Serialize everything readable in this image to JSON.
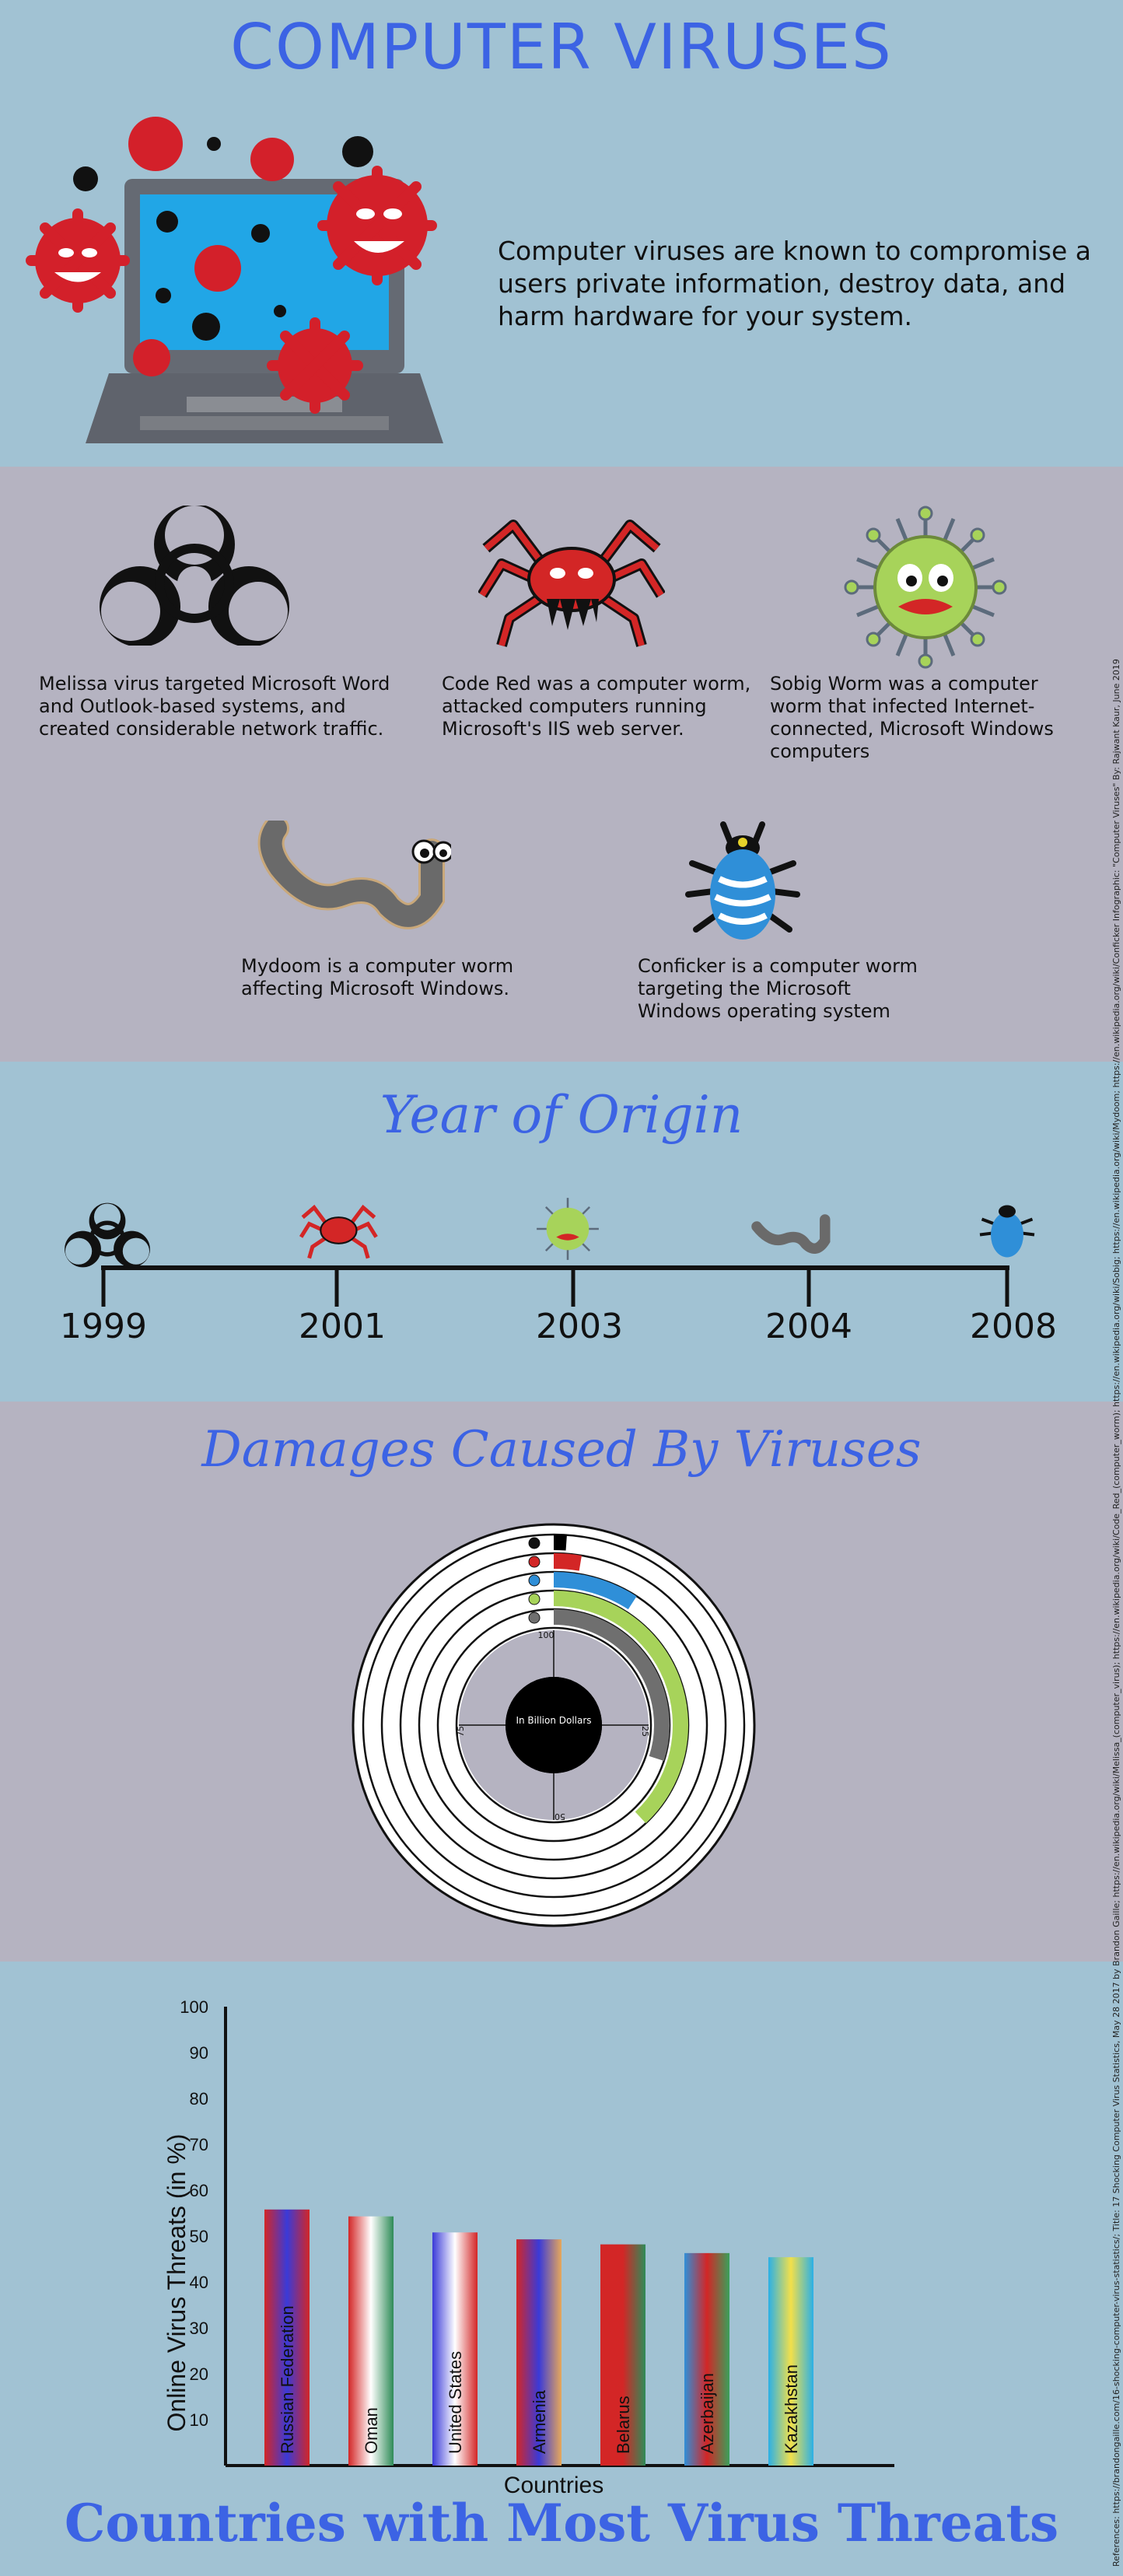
{
  "header": {
    "title": "COMPUTER VIRUSES",
    "intro": "Computer viruses are known to compromise a users private information, destroy data, and harm hardware for your system."
  },
  "viruses": [
    {
      "icon": "biohazard-icon",
      "caption": "Melissa virus  targeted Microsoft Word and Outlook-based systems, and created considerable network traffic."
    },
    {
      "icon": "spider-icon",
      "caption": "Code Red was a computer worm, attacked computers running Microsoft's IIS web server."
    },
    {
      "icon": "germ-icon",
      "caption": "Sobig Worm was a computer worm  that infected Internet-connected, Microsoft Windows computers"
    },
    {
      "icon": "worm-icon",
      "caption": "Mydoom is a computer worm affecting  Microsoft Windows."
    },
    {
      "icon": "bug-icon",
      "caption": "Conficker is a computer worm  targeting the Microsoft  Windows operating system"
    }
  ],
  "timeline": {
    "title": "Year of Origin",
    "years": [
      "1999",
      "2001",
      "2003",
      "2004",
      "2008"
    ]
  },
  "damages": {
    "title": "Damages Caused By Viruses",
    "center_label": "In Billion Dollars",
    "scale_labels": [
      "100",
      "25",
      "50",
      "75"
    ],
    "colors": [
      "#000000",
      "#d32626",
      "#2f8fd8",
      "#a7d35a",
      "#6f6f6f"
    ]
  },
  "countries": {
    "title": "Countries with Most Virus Threats"
  },
  "references": "References: https://brandongaille.com/16-shocking-computer-virus-statistics/; Title: 17 Shocking Computer Virus Statistics, May 28 2017 by Brandon Gaille; https://en.wikipedia.org/wiki/Melissa_(computer_virus); https://en.wikipedia.org/wiki/Code_Red_(computer_worm); https://en.wikipedia.org/wiki/Sobig; https://en.wikipedia.org/wiki/Mydoom; https://en.wikipedia.org/wiki/Conficker Infographic: \"Computer Viruses\" By: Rajwant Kaur, June 2019",
  "chart_data": [
    {
      "type": "bar",
      "title": "Countries with Most Virus Threats",
      "xlabel": "Countries",
      "ylabel": "Online Virus Threats (in %)",
      "ylim": [
        0,
        100
      ],
      "yticks": [
        10,
        20,
        30,
        40,
        50,
        60,
        70,
        80,
        90,
        100
      ],
      "categories": [
        "Russian Federation",
        "Oman",
        "United States",
        "Armenia",
        "Belarus",
        "Azerbaijan",
        "Kazakhstan"
      ],
      "values": [
        55.8,
        54.3,
        50.8,
        49.3,
        48.2,
        46.3,
        45.4
      ]
    },
    {
      "type": "bar",
      "title": "Damages Caused By Viruses",
      "subtitle": "In Billion Dollars",
      "categories": [
        "Melissa",
        "Code Red",
        "Sobig",
        "Mydoom",
        "Conficker"
      ],
      "values": [
        1.1,
        2.6,
        9.1,
        38,
        30
      ],
      "axis_max": 100
    }
  ]
}
